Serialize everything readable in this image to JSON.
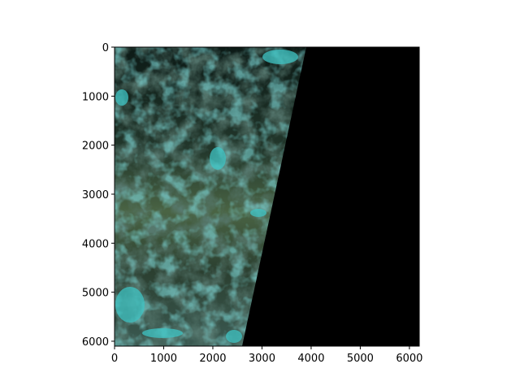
{
  "figure": {
    "background": "#ffffff",
    "image": {
      "description_colors": {
        "land_dark": "#0a120e",
        "vegetation": "#4f6a48",
        "water_cyan": "#3fc8c8",
        "nodata": "#000000"
      }
    },
    "axes": {
      "x": {
        "ticks": [
          0,
          1000,
          2000,
          3000,
          4000,
          5000,
          6000
        ],
        "range": [
          0,
          6200
        ]
      },
      "y": {
        "ticks": [
          0,
          1000,
          2000,
          3000,
          4000,
          5000,
          6000
        ],
        "range": [
          0,
          6100
        ],
        "inverted": true
      }
    }
  },
  "chart_data": {
    "type": "heatmap",
    "title": "",
    "xlabel": "",
    "ylabel": "",
    "xlim": [
      0,
      6200
    ],
    "ylim": [
      6100,
      0
    ],
    "x_ticks": [
      0,
      1000,
      2000,
      3000,
      4000,
      5000,
      6000
    ],
    "y_ticks": [
      0,
      1000,
      2000,
      3000,
      4000,
      5000,
      6000
    ],
    "grid": false
  }
}
